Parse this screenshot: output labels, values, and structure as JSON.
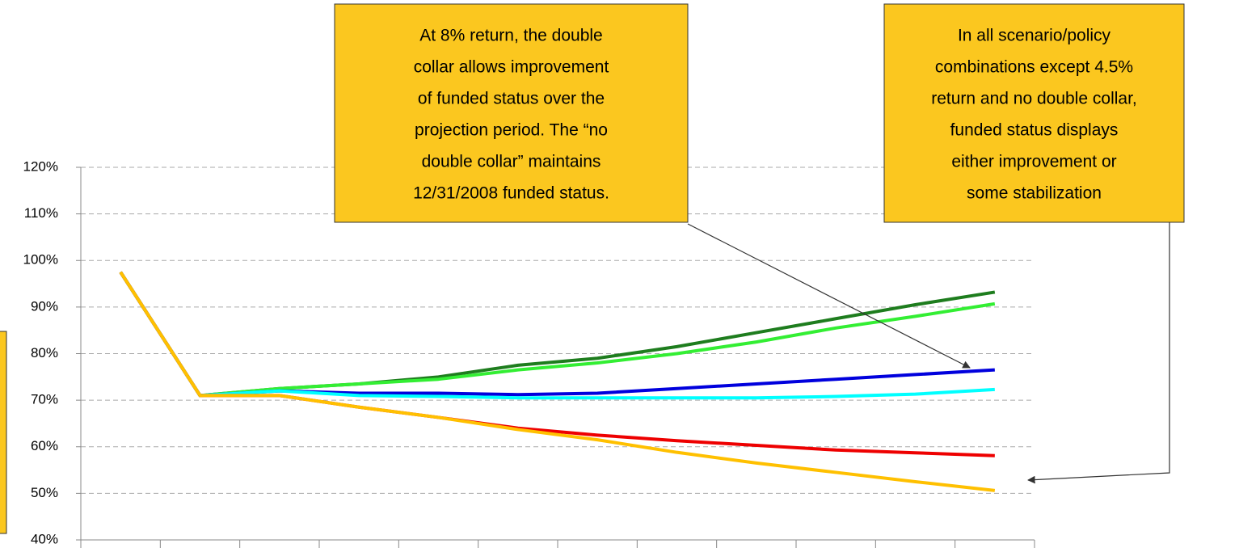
{
  "chart_data": {
    "type": "line",
    "categories": [
      null,
      null,
      null,
      null,
      null,
      null,
      null,
      null,
      null,
      null,
      null,
      null
    ],
    "series": [
      {
        "color": "#1e7d1e",
        "values": [
          97.5,
          71,
          72.5,
          73.5,
          75,
          77.5,
          79,
          81.5,
          84.5,
          87.5,
          90.5,
          93.2
        ]
      },
      {
        "color": "#33ee33",
        "values": [
          97.5,
          71,
          72.5,
          73.5,
          74.5,
          76.5,
          78,
          80,
          82.5,
          85.5,
          88,
          90.7
        ]
      },
      {
        "color": "#0000dd",
        "values": [
          97.5,
          71,
          72,
          71.5,
          71.5,
          71.2,
          71.5,
          72.5,
          73.5,
          74.5,
          75.5,
          76.5
        ]
      },
      {
        "color": "#00ffff",
        "values": [
          97.5,
          71,
          72,
          71,
          70.8,
          70.5,
          70.5,
          70.5,
          70.5,
          70.8,
          71.3,
          72.3
        ]
      },
      {
        "color": "#ee0000",
        "values": [
          97.5,
          71,
          71,
          68.5,
          66.3,
          64,
          62.5,
          61.3,
          60.3,
          59.3,
          58.7,
          58.1
        ]
      },
      {
        "color": "#ffc000",
        "values": [
          97.5,
          71,
          71,
          68.5,
          66.3,
          63.7,
          61.5,
          58.8,
          56.5,
          54.5,
          52.5,
          50.6
        ]
      }
    ],
    "ylim": [
      40,
      120
    ],
    "yticks": [
      {
        "value": 40,
        "label": "40%"
      },
      {
        "value": 50,
        "label": "50%"
      },
      {
        "value": 60,
        "label": "60%"
      },
      {
        "value": 70,
        "label": "70%"
      },
      {
        "value": 80,
        "label": "80%"
      },
      {
        "value": 90,
        "label": "90%"
      },
      {
        "value": 100,
        "label": "100%"
      },
      {
        "value": 110,
        "label": "110%"
      },
      {
        "value": 120,
        "label": "120%"
      }
    ],
    "grid": true,
    "annotations": [
      {
        "lines": [
          "At 8% return, the double",
          "collar allows improvement",
          "of funded status over the",
          "projection period.  The “no",
          "double collar” maintains",
          "12/31/2008 funded status."
        ]
      },
      {
        "lines": [
          "In all scenario/policy",
          "combinations except 4.5%",
          "return and no double collar,",
          "funded status displays",
          "either improvement or",
          "some stabilization"
        ]
      }
    ]
  }
}
